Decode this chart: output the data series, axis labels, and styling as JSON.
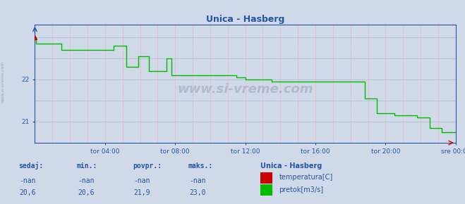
{
  "title": "Unica - Hasberg",
  "bg_color": "#d0d9e8",
  "plot_bg_color": "#d0d9e8",
  "grid_color_v": "#ff9999",
  "grid_color_h": "#aabbcc",
  "line_color_pretok": "#00bb00",
  "line_color_temp": "#cc0000",
  "axis_color": "#2255aa",
  "title_color": "#2255aa",
  "x_ticks": [
    4,
    8,
    12,
    16,
    20,
    24
  ],
  "x_tick_labels": [
    "tor 04:00",
    "tor 08:00",
    "tor 12:00",
    "tor 16:00",
    "tor 20:00",
    "sre 00:00"
  ],
  "y_ticks": [
    21,
    22
  ],
  "x_range": [
    0,
    24
  ],
  "y_range": [
    20.5,
    23.3
  ],
  "pretok_x": [
    0.0,
    0.08,
    0.08,
    1.5,
    1.5,
    4.5,
    4.5,
    5.2,
    5.2,
    5.9,
    5.9,
    6.5,
    6.5,
    7.5,
    7.5,
    7.8,
    7.8,
    11.5,
    11.5,
    12.0,
    12.0,
    13.5,
    13.5,
    18.8,
    18.8,
    19.5,
    19.5,
    20.5,
    20.5,
    21.8,
    21.8,
    22.5,
    22.5,
    23.2,
    23.2,
    24.0
  ],
  "pretok_y": [
    23.0,
    23.0,
    22.85,
    22.85,
    22.7,
    22.7,
    22.8,
    22.8,
    22.3,
    22.3,
    22.55,
    22.55,
    22.2,
    22.2,
    22.5,
    22.5,
    22.1,
    22.1,
    22.05,
    22.05,
    22.0,
    22.0,
    21.95,
    21.95,
    21.55,
    21.55,
    21.2,
    21.2,
    21.15,
    21.15,
    21.1,
    21.1,
    20.85,
    20.85,
    20.75,
    20.75
  ],
  "watermark": "www.si-vreme.com",
  "side_label": "www.si-vreme.com",
  "legend_station": "Unica - Hasberg",
  "legend_items": [
    {
      "label": "temperatura[C]",
      "color": "#cc0000"
    },
    {
      "label": "pretok[m3/s]",
      "color": "#00bb00"
    }
  ],
  "stats_headers": [
    "sedaj:",
    "min.:",
    "povpr.:",
    "maks.:"
  ],
  "stats_temp": [
    "-nan",
    "-nan",
    "-nan",
    "-nan"
  ],
  "stats_pretok": [
    "20,6",
    "20,6",
    "21,9",
    "23,0"
  ],
  "stats_color": "#2255aa"
}
